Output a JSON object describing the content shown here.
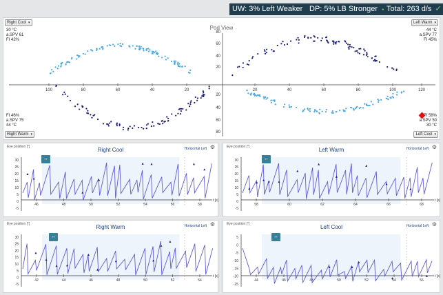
{
  "header": {
    "uw": "UW: 3% Left Weaker",
    "dp": "DP: 5% LB Stronger",
    "total": "Total: 263 d/s",
    "check": "✓"
  },
  "pod": {
    "title": "Pod View",
    "selects": {
      "top_left": "Right Cool",
      "top_right": "Left Warm",
      "bottom_left": "Right Warm",
      "bottom_right": "Left Cool",
      "arrow": "▾"
    },
    "tl": {
      "temp": "30 °C",
      "spv": "a.SPV 61",
      "fi": "FI 42%"
    },
    "tr": {
      "temp": "44 °C",
      "spv": "a.SPV 77",
      "fi": "FI 45%"
    },
    "bl": {
      "fi": "FI 46%",
      "spv": "a.SPV 75",
      "temp": "44 °C"
    },
    "br": {
      "fi": "FI 58%",
      "spv": "a.SPV 50",
      "temp": "30 °C"
    },
    "x_ticks": [
      "100",
      "80",
      "60",
      "40",
      "20",
      "20",
      "40",
      "60",
      "80",
      "100",
      "120"
    ],
    "y_ticks_up": [
      "80",
      "60",
      "40",
      "20"
    ],
    "y_ticks_down": [
      "20",
      "40",
      "60",
      "80"
    ],
    "warning_color": "#e01010"
  },
  "panels": [
    {
      "title": "Right Cool",
      "eye": "Eye position [°]",
      "horiz": "Horizontal Left",
      "y_ticks": [
        "30",
        "25",
        "20",
        "15",
        "10",
        "5",
        "0",
        "-5"
      ],
      "x_ticks": [
        "46",
        "48",
        "50",
        "52",
        "54",
        "56",
        "58"
      ],
      "unit": "t [s]"
    },
    {
      "title": "Left Warm",
      "eye": "Eye position [°]",
      "horiz": "Horizontal Left",
      "y_ticks": [
        "30",
        "25",
        "20",
        "15",
        "10",
        "5",
        "0",
        "-5"
      ],
      "x_ticks": [
        "58",
        "60",
        "62",
        "64",
        "66",
        "68"
      ],
      "unit": "t [s]"
    },
    {
      "title": "Right Warm",
      "eye": "Eye position [°]",
      "horiz": "Horizontal Left",
      "y_ticks": [
        "30",
        "25",
        "20",
        "15",
        "10",
        "5",
        "0",
        "-5"
      ],
      "x_ticks": [
        "42",
        "44",
        "46",
        "48",
        "50",
        "52",
        "54"
      ],
      "unit": "t [s]"
    },
    {
      "title": "Left Cool",
      "eye": "Eye position [°]",
      "horiz": "Horizontal Left",
      "y_ticks": [
        "5",
        "0",
        "-5",
        "-10",
        "-15",
        "-20",
        "-25"
      ],
      "x_ticks": [
        "44",
        "46",
        "48",
        "50",
        "52",
        "54",
        "56"
      ],
      "unit": "t [s]"
    }
  ],
  "icons": {
    "pan": "↔",
    "gear": "⚙"
  },
  "colors": {
    "accent": "#1f3d4d",
    "trace": "#5b5bd6",
    "dots_light": "#4aa8e0",
    "dots_dark": "#1c1c7a",
    "button": "#3a7f96"
  }
}
